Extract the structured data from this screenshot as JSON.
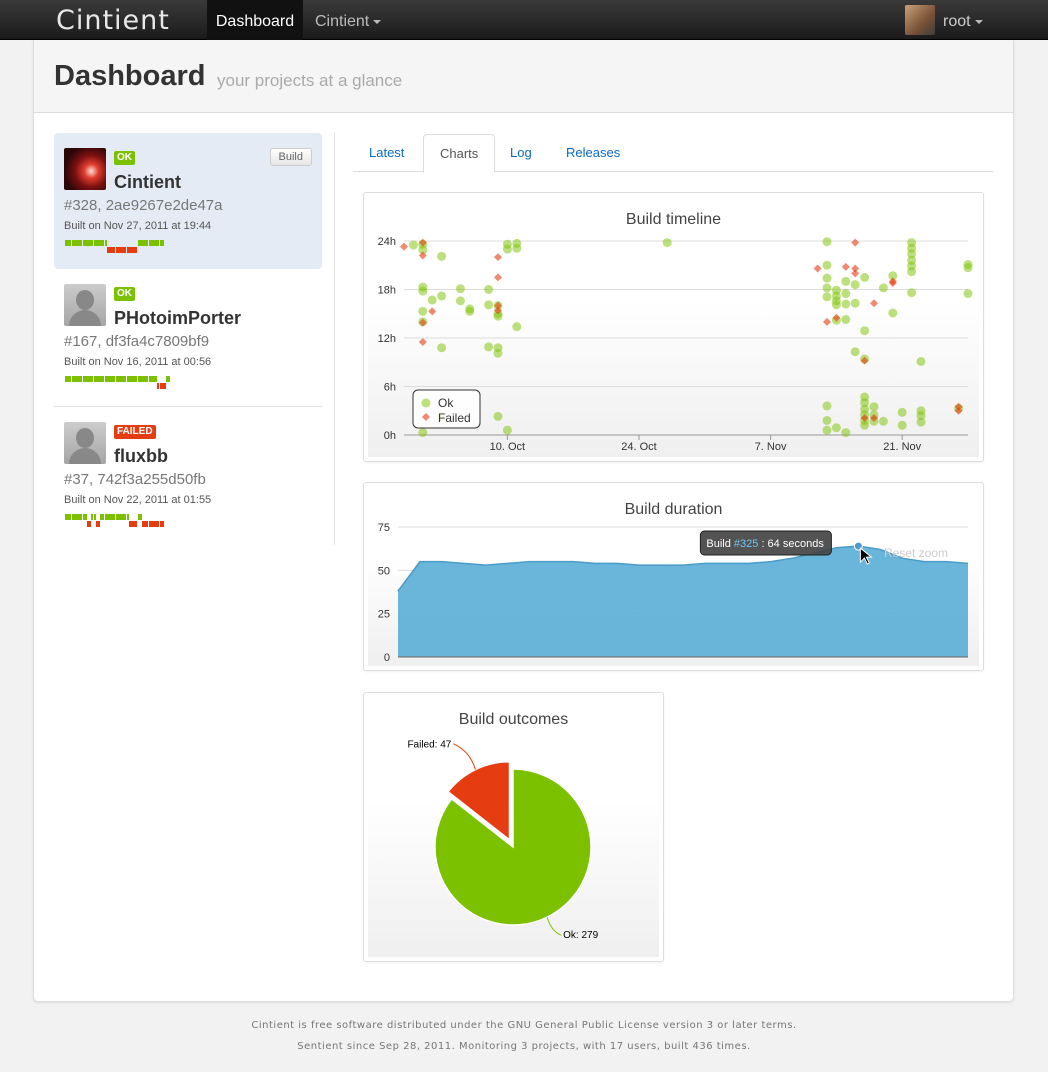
{
  "navbar": {
    "brand": "Cintient",
    "active_item": "Dashboard",
    "menu_item": "Cintient",
    "user": "root"
  },
  "header": {
    "title": "Dashboard",
    "subtitle": "your projects at a glance"
  },
  "projects": [
    {
      "name": "Cintient",
      "status": "OK",
      "build": "#328, 2ae9267e2de47a",
      "date": "Built on Nov 27, 2011 at 19:44",
      "build_button": "Build",
      "history": [
        1,
        1,
        1,
        1,
        1,
        1,
        1,
        1,
        1,
        1,
        1,
        1,
        1,
        1,
        1,
        1,
        1,
        1,
        1,
        0,
        0,
        0,
        0,
        0,
        0,
        0,
        0,
        0,
        0,
        0,
        0,
        0,
        0,
        1,
        1,
        1,
        1,
        1,
        1,
        1,
        1,
        1,
        1,
        1,
        1
      ]
    },
    {
      "name": "PHotoimPorter",
      "status": "OK",
      "build": "#167, df3fa4c7809bf9",
      "date": "Built on Nov 16, 2011 at 00:56",
      "history": [
        1,
        1,
        1,
        1,
        1,
        1,
        1,
        1,
        1,
        1,
        1,
        1,
        1,
        1,
        1,
        1,
        1,
        1,
        1,
        1,
        1,
        1,
        1,
        1,
        1,
        1,
        1,
        1,
        1,
        1,
        1,
        1,
        1,
        1,
        1,
        1,
        1,
        1,
        1,
        1,
        1,
        1,
        0,
        0,
        0,
        0,
        1,
        1
      ]
    },
    {
      "name": "fluxbb",
      "status": "FAILED",
      "build": "#37, 742f3a255d50fb",
      "date": "Built on Nov 22, 2011 at 01:55",
      "history": [
        1,
        1,
        1,
        1,
        1,
        1,
        1,
        1,
        1,
        1,
        0,
        0,
        1,
        1,
        0,
        0,
        1,
        1,
        1,
        1,
        1,
        1,
        1,
        1,
        1,
        1,
        1,
        1,
        1,
        0,
        0,
        0,
        0,
        1,
        1,
        0,
        0,
        0,
        0,
        0,
        0,
        0,
        0,
        0,
        0
      ]
    }
  ],
  "tabs": [
    "Latest",
    "Charts",
    "Log",
    "Releases"
  ],
  "active_tab": "Charts",
  "colors": {
    "ok": "#7cc100",
    "failed": "#e53c12",
    "duration_fill": "#5aaed6",
    "link": "#0a6bc4"
  },
  "chart_data": [
    {
      "type": "scatter",
      "title": "Build timeline",
      "x_ticks": [
        "10. Oct",
        "24. Oct",
        "7. Nov",
        "21. Nov"
      ],
      "y_ticks": [
        "0h",
        "6h",
        "12h",
        "18h",
        "24h"
      ],
      "legend": [
        "Ok",
        "Failed"
      ],
      "legend_position": "bottom-left",
      "xlim": [
        "Sep 29",
        "Nov 28"
      ],
      "ylim": [
        0,
        24
      ],
      "series": [
        {
          "name": "Ok",
          "points": [
            [
              "Sep 30",
              23.5
            ],
            [
              "Oct 1",
              22.9
            ],
            [
              "Oct 1",
              23.6
            ],
            [
              "Oct 1",
              18.3
            ],
            [
              "Oct 1",
              17.8
            ],
            [
              "Oct 1",
              15.3
            ],
            [
              "Oct 1",
              14.0
            ],
            [
              "Oct 1",
              0.3
            ],
            [
              "Oct 2",
              16.7
            ],
            [
              "Oct 3",
              17.2
            ],
            [
              "Oct 3",
              22.1
            ],
            [
              "Oct 3",
              10.8
            ],
            [
              "Oct 3",
              2.3
            ],
            [
              "Oct 5",
              18.1
            ],
            [
              "Oct 5",
              16.6
            ],
            [
              "Oct 6",
              15.3
            ],
            [
              "Oct 6",
              15.6
            ],
            [
              "Oct 8",
              16.1
            ],
            [
              "Oct 8",
              18.0
            ],
            [
              "Oct 8",
              10.9
            ],
            [
              "Oct 9",
              15.0
            ],
            [
              "Oct 9",
              10.1
            ],
            [
              "Oct 9",
              10.8
            ],
            [
              "Oct 9",
              2.3
            ],
            [
              "Oct 9",
              14.7
            ],
            [
              "Oct 9",
              16.0
            ],
            [
              "Oct 10",
              23.6
            ],
            [
              "Oct 10",
              23.0
            ],
            [
              "Oct 10",
              0.6
            ],
            [
              "Oct 11",
              23.7
            ],
            [
              "Oct 11",
              23.1
            ],
            [
              "Oct 11",
              13.4
            ],
            [
              "Oct 27",
              23.8
            ],
            [
              "Nov 13",
              23.9
            ],
            [
              "Nov 13",
              21.0
            ],
            [
              "Nov 13",
              19.4
            ],
            [
              "Nov 13",
              18.2
            ],
            [
              "Nov 13",
              17.1
            ],
            [
              "Nov 13",
              3.6
            ],
            [
              "Nov 13",
              1.8
            ],
            [
              "Nov 13",
              0.6
            ],
            [
              "Nov 14",
              14.2
            ],
            [
              "Nov 14",
              16.6
            ],
            [
              "Nov 14",
              17.9
            ],
            [
              "Nov 14",
              17.2
            ],
            [
              "Nov 14",
              16.1
            ],
            [
              "Nov 14",
              0.9
            ],
            [
              "Nov 15",
              19.0
            ],
            [
              "Nov 15",
              17.5
            ],
            [
              "Nov 15",
              16.2
            ],
            [
              "Nov 15",
              14.3
            ],
            [
              "Nov 15",
              0.3
            ],
            [
              "Nov 16",
              18.6
            ],
            [
              "Nov 16",
              16.3
            ],
            [
              "Nov 16",
              10.3
            ],
            [
              "Nov 17",
              3.2
            ],
            [
              "Nov 17",
              2.5
            ],
            [
              "Nov 17",
              1.8
            ],
            [
              "Nov 17",
              1.2
            ],
            [
              "Nov 17",
              4.7
            ],
            [
              "Nov 17",
              4.0
            ],
            [
              "Nov 17",
              19.5
            ],
            [
              "Nov 17",
              12.9
            ],
            [
              "Nov 17",
              9.4
            ],
            [
              "Nov 18",
              1.7
            ],
            [
              "Nov 18",
              3.5
            ],
            [
              "Nov 18",
              2.5
            ],
            [
              "Nov 19",
              18.2
            ],
            [
              "Nov 19",
              1.7
            ],
            [
              "Nov 20",
              19.7
            ],
            [
              "Nov 20",
              15.1
            ],
            [
              "Nov 21",
              2.8
            ],
            [
              "Nov 21",
              1.2
            ],
            [
              "Nov 22",
              23.8
            ],
            [
              "Nov 22",
              23.1
            ],
            [
              "Nov 22",
              22.4
            ],
            [
              "Nov 22",
              20.9
            ],
            [
              "Nov 22",
              20.2
            ],
            [
              "Nov 22",
              21.6
            ],
            [
              "Nov 22",
              17.6
            ],
            [
              "Nov 23",
              1.6
            ],
            [
              "Nov 23",
              2.4
            ],
            [
              "Nov 23",
              3.0
            ],
            [
              "Nov 23",
              9.1
            ],
            [
              "Nov 27",
              3.3
            ],
            [
              "Nov 28",
              20.7
            ],
            [
              "Nov 28",
              21.1
            ],
            [
              "Nov 28",
              17.5
            ]
          ]
        },
        {
          "name": "Failed",
          "points": [
            [
              "Sep 29",
              23.3
            ],
            [
              "Oct 1",
              23.8
            ],
            [
              "Oct 1",
              22.2
            ],
            [
              "Oct 1",
              11.5
            ],
            [
              "Oct 1",
              13.9
            ],
            [
              "Oct 2",
              15.3
            ],
            [
              "Oct 9",
              22.0
            ],
            [
              "Oct 9",
              19.5
            ],
            [
              "Oct 9",
              16.0
            ],
            [
              "Oct 9",
              15.4
            ],
            [
              "Nov 12",
              20.6
            ],
            [
              "Nov 13",
              14.0
            ],
            [
              "Nov 14",
              14.5
            ],
            [
              "Nov 15",
              20.8
            ],
            [
              "Nov 16",
              20.6
            ],
            [
              "Nov 16",
              20.0
            ],
            [
              "Nov 16",
              23.8
            ],
            [
              "Nov 17",
              9.2
            ],
            [
              "Nov 17",
              2.1
            ],
            [
              "Nov 18",
              16.3
            ],
            [
              "Nov 18",
              2.1
            ],
            [
              "Nov 20",
              19.0
            ],
            [
              "Nov 20",
              18.8
            ],
            [
              "Nov 27",
              3.5
            ],
            [
              "Nov 27",
              3.0
            ]
          ]
        }
      ]
    },
    {
      "type": "area",
      "title": "Build duration",
      "y_ticks": [
        0,
        25,
        50,
        75
      ],
      "ylim": [
        0,
        75
      ],
      "values": [
        38,
        55,
        55,
        54,
        53,
        54,
        55,
        55,
        55,
        54,
        54,
        53,
        53,
        53,
        54,
        54,
        54,
        55,
        57,
        60,
        63,
        64,
        62,
        57,
        55,
        55,
        54
      ],
      "tooltip": {
        "prefix": "Build",
        "build": "#325",
        "text": ": 64 seconds",
        "hover_index": 21
      },
      "reset_zoom_label": "Reset zoom"
    },
    {
      "type": "pie",
      "title": "Build outcomes",
      "slices": [
        {
          "label": "Ok",
          "value": 279
        },
        {
          "label": "Failed",
          "value": 47
        }
      ],
      "labels": [
        "Ok: 279",
        "Failed: 47"
      ]
    }
  ],
  "footer": {
    "line1": "Cintient is free software distributed under the GNU General Public License version 3 or later terms.",
    "line2": "Sentient since Sep 28, 2011. Monitoring 3 projects, with 17 users, built 436 times."
  }
}
